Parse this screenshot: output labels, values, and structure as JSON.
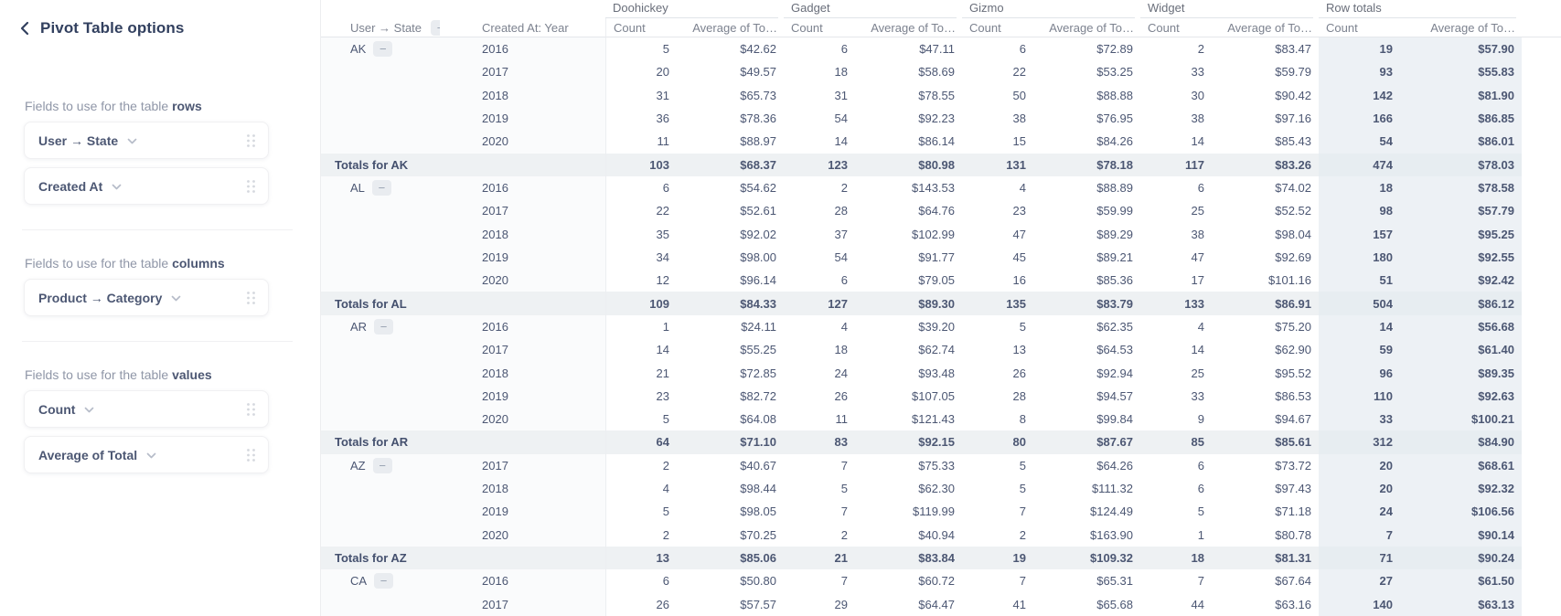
{
  "panel": {
    "title": "Pivot Table options",
    "back_icon": "chevron-left",
    "sections": [
      {
        "prefix": "Fields to use for the table",
        "keyword": "rows",
        "fields": [
          {
            "label": "User → State"
          },
          {
            "label": "Created At"
          }
        ]
      },
      {
        "prefix": "Fields to use for the table",
        "keyword": "columns",
        "fields": [
          {
            "label": "Product → Category"
          }
        ]
      },
      {
        "prefix": "Fields to use for the table",
        "keyword": "values",
        "fields": [
          {
            "label": "Count"
          },
          {
            "label": "Average of Total"
          }
        ]
      }
    ]
  },
  "table": {
    "row_header_1": "User → State",
    "row_header_2": "Created At: Year",
    "collapse_icon": "minus",
    "groups": [
      "Doohickey",
      "Gadget",
      "Gizmo",
      "Widget",
      "Row totals"
    ],
    "value_headers": [
      "Count",
      "Average of To…"
    ],
    "sections": [
      {
        "state": "AK",
        "rows": [
          {
            "year": "2016",
            "values": [
              "5",
              "$42.62",
              "6",
              "$47.11",
              "6",
              "$72.89",
              "2",
              "$83.47",
              "19",
              "$57.90"
            ]
          },
          {
            "year": "2017",
            "values": [
              "20",
              "$49.57",
              "18",
              "$58.69",
              "22",
              "$53.25",
              "33",
              "$59.79",
              "93",
              "$55.83"
            ]
          },
          {
            "year": "2018",
            "values": [
              "31",
              "$65.73",
              "31",
              "$78.55",
              "50",
              "$88.88",
              "30",
              "$90.42",
              "142",
              "$81.90"
            ]
          },
          {
            "year": "2019",
            "values": [
              "36",
              "$78.36",
              "54",
              "$92.23",
              "38",
              "$76.95",
              "38",
              "$97.16",
              "166",
              "$86.85"
            ]
          },
          {
            "year": "2020",
            "values": [
              "11",
              "$88.97",
              "14",
              "$86.14",
              "15",
              "$84.26",
              "14",
              "$85.43",
              "54",
              "$86.01"
            ]
          }
        ],
        "totals": {
          "label": "Totals for AK",
          "values": [
            "103",
            "$68.37",
            "123",
            "$80.98",
            "131",
            "$78.18",
            "117",
            "$83.26",
            "474",
            "$78.03"
          ]
        }
      },
      {
        "state": "AL",
        "rows": [
          {
            "year": "2016",
            "values": [
              "6",
              "$54.62",
              "2",
              "$143.53",
              "4",
              "$88.89",
              "6",
              "$74.02",
              "18",
              "$78.58"
            ]
          },
          {
            "year": "2017",
            "values": [
              "22",
              "$52.61",
              "28",
              "$64.76",
              "23",
              "$59.99",
              "25",
              "$52.52",
              "98",
              "$57.79"
            ]
          },
          {
            "year": "2018",
            "values": [
              "35",
              "$92.02",
              "37",
              "$102.99",
              "47",
              "$89.29",
              "38",
              "$98.04",
              "157",
              "$95.25"
            ]
          },
          {
            "year": "2019",
            "values": [
              "34",
              "$98.00",
              "54",
              "$91.77",
              "45",
              "$89.21",
              "47",
              "$92.69",
              "180",
              "$92.55"
            ]
          },
          {
            "year": "2020",
            "values": [
              "12",
              "$96.14",
              "6",
              "$79.05",
              "16",
              "$85.36",
              "17",
              "$101.16",
              "51",
              "$92.42"
            ]
          }
        ],
        "totals": {
          "label": "Totals for AL",
          "values": [
            "109",
            "$84.33",
            "127",
            "$89.30",
            "135",
            "$83.79",
            "133",
            "$86.91",
            "504",
            "$86.12"
          ]
        }
      },
      {
        "state": "AR",
        "rows": [
          {
            "year": "2016",
            "values": [
              "1",
              "$24.11",
              "4",
              "$39.20",
              "5",
              "$62.35",
              "4",
              "$75.20",
              "14",
              "$56.68"
            ]
          },
          {
            "year": "2017",
            "values": [
              "14",
              "$55.25",
              "18",
              "$62.74",
              "13",
              "$64.53",
              "14",
              "$62.90",
              "59",
              "$61.40"
            ]
          },
          {
            "year": "2018",
            "values": [
              "21",
              "$72.85",
              "24",
              "$93.48",
              "26",
              "$92.94",
              "25",
              "$95.52",
              "96",
              "$89.35"
            ]
          },
          {
            "year": "2019",
            "values": [
              "23",
              "$82.72",
              "26",
              "$107.05",
              "28",
              "$94.57",
              "33",
              "$86.53",
              "110",
              "$92.63"
            ]
          },
          {
            "year": "2020",
            "values": [
              "5",
              "$64.08",
              "11",
              "$121.43",
              "8",
              "$99.84",
              "9",
              "$94.67",
              "33",
              "$100.21"
            ]
          }
        ],
        "totals": {
          "label": "Totals for AR",
          "values": [
            "64",
            "$71.10",
            "83",
            "$92.15",
            "80",
            "$87.67",
            "85",
            "$85.61",
            "312",
            "$84.90"
          ]
        }
      },
      {
        "state": "AZ",
        "rows": [
          {
            "year": "2017",
            "values": [
              "2",
              "$40.67",
              "7",
              "$75.33",
              "5",
              "$64.26",
              "6",
              "$73.72",
              "20",
              "$68.61"
            ]
          },
          {
            "year": "2018",
            "values": [
              "4",
              "$98.44",
              "5",
              "$62.30",
              "5",
              "$111.32",
              "6",
              "$97.43",
              "20",
              "$92.32"
            ]
          },
          {
            "year": "2019",
            "values": [
              "5",
              "$98.05",
              "7",
              "$119.99",
              "7",
              "$124.49",
              "5",
              "$71.18",
              "24",
              "$106.56"
            ]
          },
          {
            "year": "2020",
            "values": [
              "2",
              "$70.25",
              "2",
              "$40.94",
              "2",
              "$163.90",
              "1",
              "$80.78",
              "7",
              "$90.14"
            ]
          }
        ],
        "totals": {
          "label": "Totals for AZ",
          "values": [
            "13",
            "$85.06",
            "21",
            "$83.84",
            "19",
            "$109.32",
            "18",
            "$81.31",
            "71",
            "$90.24"
          ]
        }
      },
      {
        "state": "CA",
        "rows": [
          {
            "year": "2016",
            "values": [
              "6",
              "$50.80",
              "7",
              "$60.72",
              "7",
              "$65.31",
              "7",
              "$67.64",
              "27",
              "$61.50"
            ]
          },
          {
            "year": "2017",
            "values": [
              "26",
              "$57.57",
              "29",
              "$64.47",
              "41",
              "$65.68",
              "44",
              "$63.16",
              "140",
              "$63.13"
            ]
          }
        ],
        "totals": null
      }
    ]
  },
  "colors": {
    "text_dark": "#4C5773",
    "text_gray": "#7C828F",
    "label_column_bg": "#FAFBFC",
    "totals_row_bg": "#EEF1F3",
    "row_totals_col_bg": "#EDF1F5",
    "border": "#E4E7EB",
    "chip_bg": "#E9ECF0"
  }
}
